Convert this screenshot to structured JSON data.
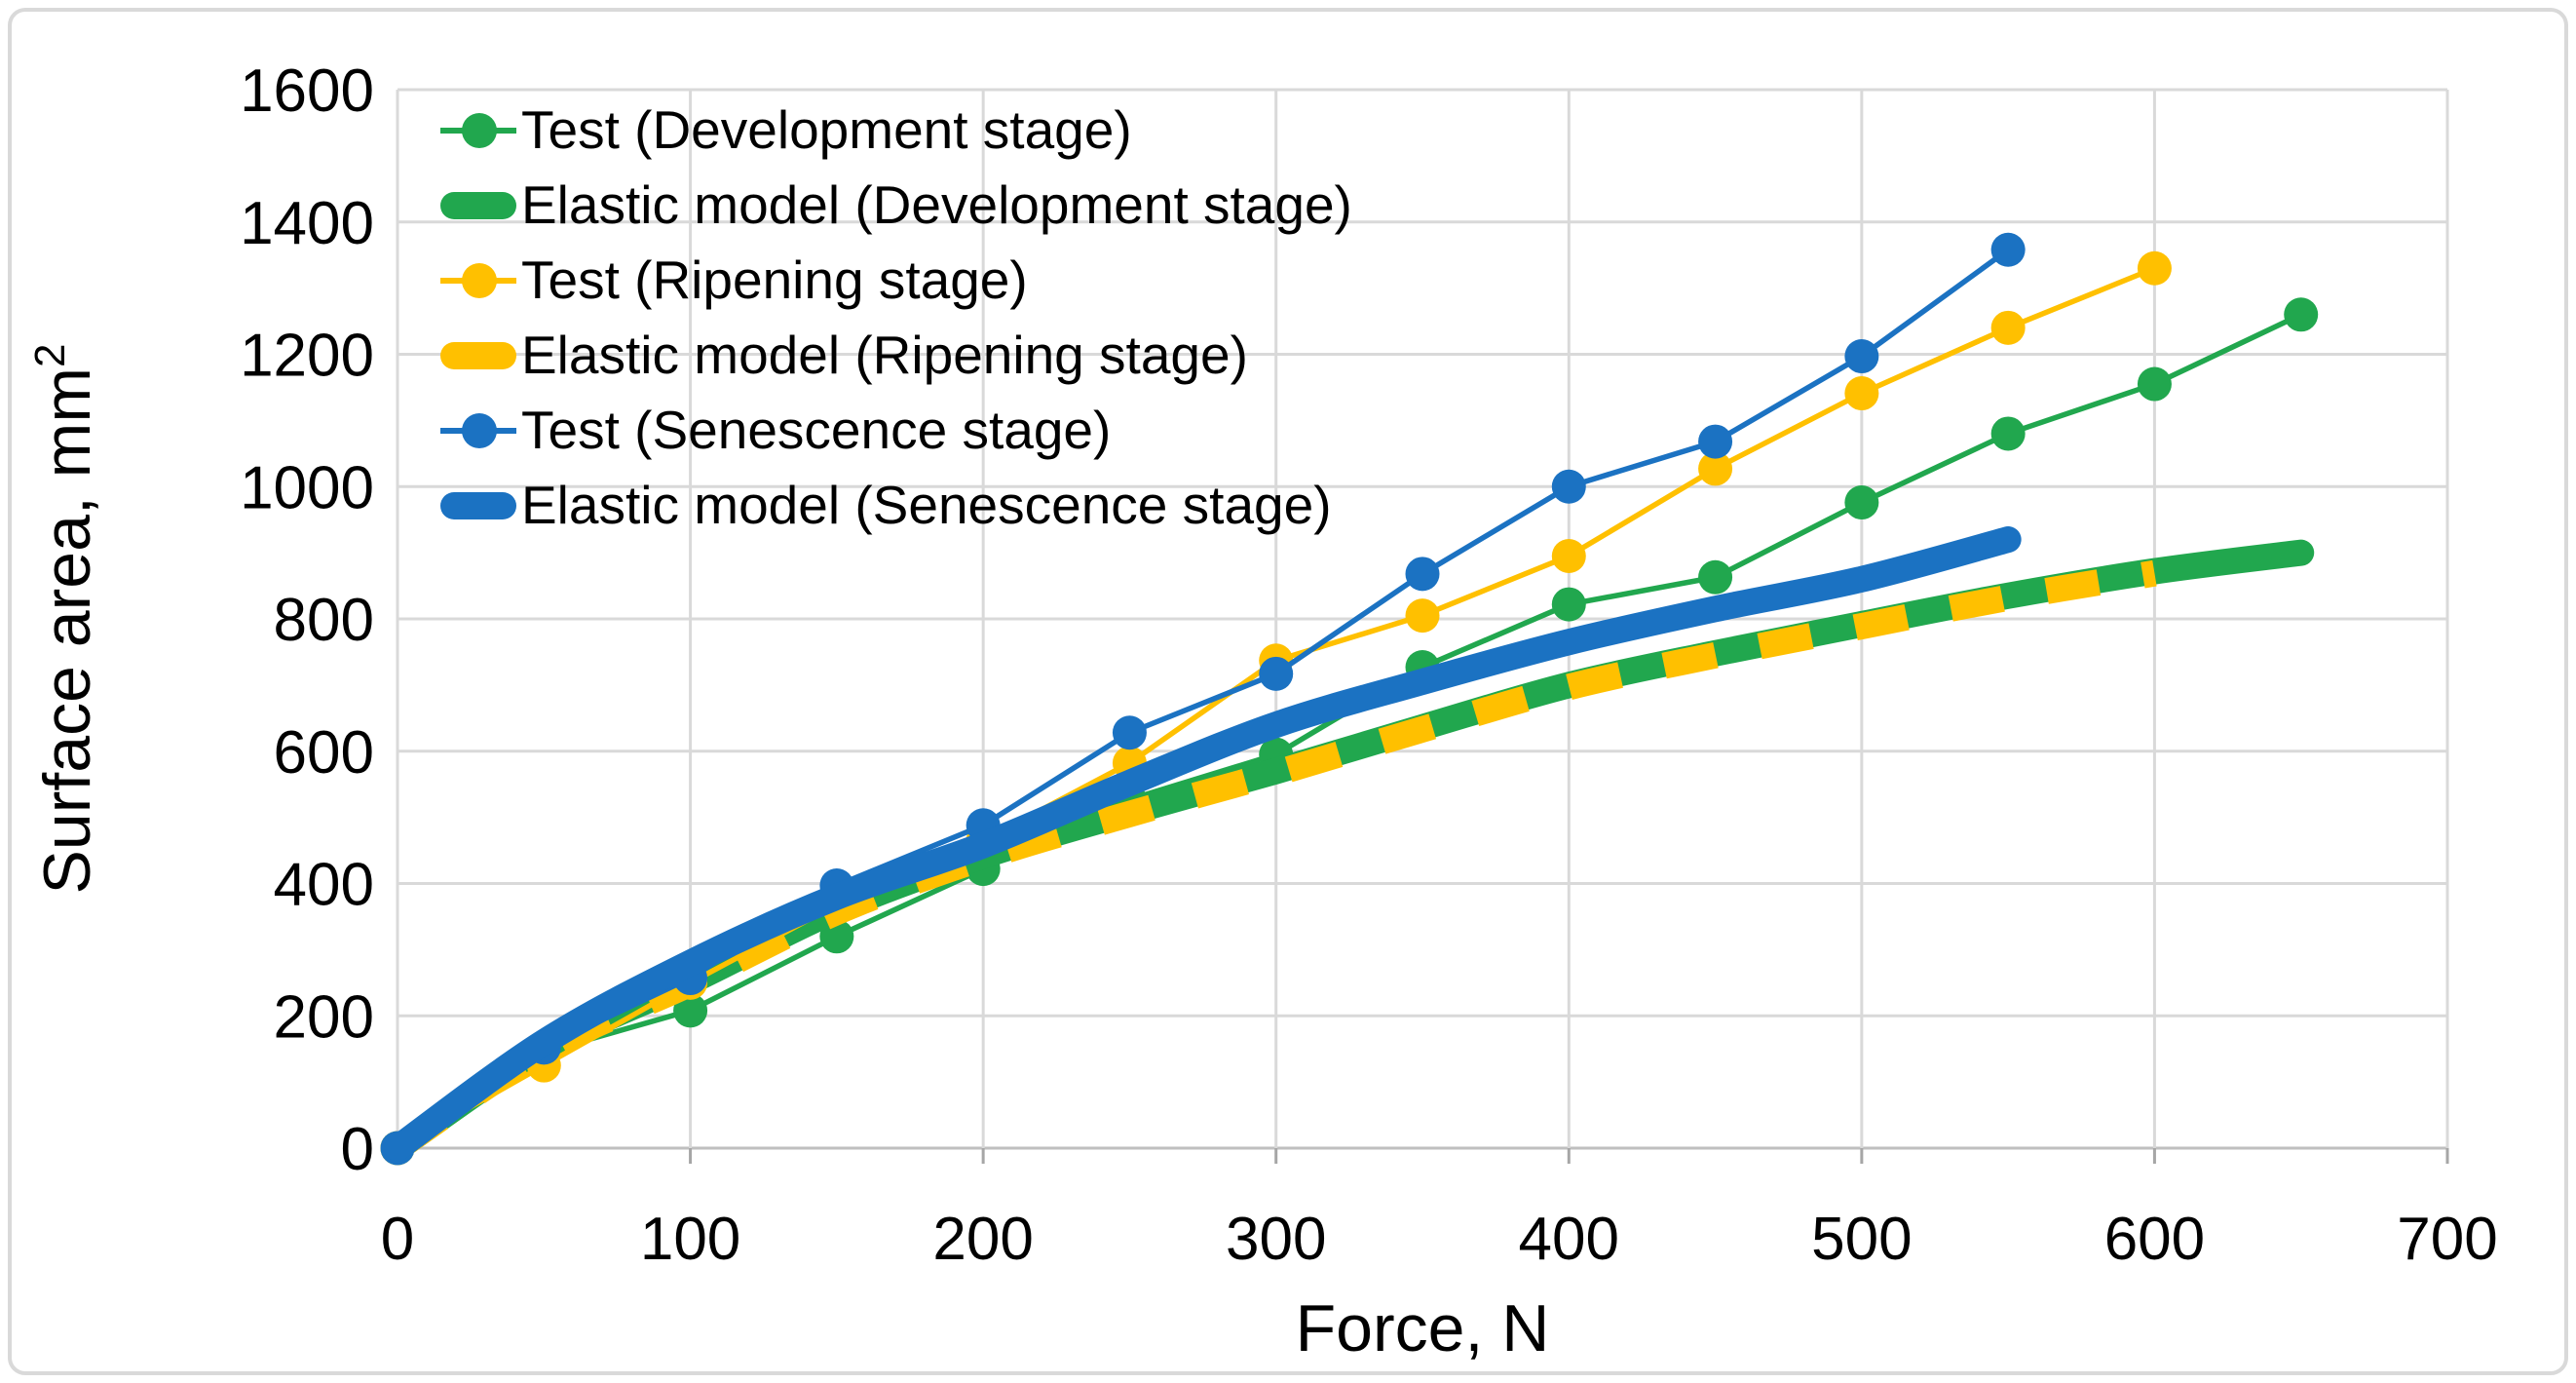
{
  "figure": {
    "background": "#ffffff",
    "border_color": "#d9d9d9"
  },
  "chart_data": {
    "type": "line",
    "title": "",
    "xlabel": "Force, N",
    "ylabel": "Surface area, mm",
    "ylabel_superscript": "2",
    "xlim": [
      0,
      700
    ],
    "ylim": [
      0,
      1600
    ],
    "xticks": [
      0,
      100,
      200,
      300,
      400,
      500,
      600,
      700
    ],
    "yticks": [
      0,
      200,
      400,
      600,
      800,
      1000,
      1200,
      1400,
      1600
    ],
    "grid": true,
    "legend_position": "top-left-inside",
    "colors": {
      "development": "#21a74e",
      "ripening": "#ffc000",
      "senescence": "#1b72c2",
      "grid": "#d9d9d9",
      "axis": "#bfbfbf",
      "tick": "#a6a6a6",
      "text": "#000000"
    },
    "series": [
      {
        "id": "test-development",
        "name": "Test (Development stage)",
        "style": "marker-line",
        "color_key": "development",
        "points": [
          [
            0,
            0
          ],
          [
            50,
            145
          ],
          [
            100,
            208
          ],
          [
            150,
            320
          ],
          [
            200,
            422
          ],
          [
            250,
            527
          ],
          [
            300,
            595
          ],
          [
            350,
            727
          ],
          [
            400,
            822
          ],
          [
            450,
            863
          ],
          [
            500,
            976
          ],
          [
            550,
            1080
          ],
          [
            600,
            1155
          ],
          [
            650,
            1260
          ]
        ]
      },
      {
        "id": "elastic-model-development",
        "name": "Elastic model (Development stage)",
        "style": "thick-line",
        "color_key": "development",
        "points": [
          [
            0,
            0
          ],
          [
            50,
            150
          ],
          [
            100,
            252
          ],
          [
            150,
            360
          ],
          [
            200,
            442
          ],
          [
            250,
            508
          ],
          [
            300,
            570
          ],
          [
            350,
            636
          ],
          [
            400,
            700
          ],
          [
            450,
            748
          ],
          [
            500,
            792
          ],
          [
            550,
            835
          ],
          [
            600,
            872
          ],
          [
            650,
            900
          ]
        ]
      },
      {
        "id": "test-ripening",
        "name": "Test (Ripening stage)",
        "style": "marker-line",
        "color_key": "ripening",
        "points": [
          [
            0,
            0
          ],
          [
            50,
            125
          ],
          [
            100,
            250
          ],
          [
            150,
            368
          ],
          [
            200,
            465
          ],
          [
            250,
            582
          ],
          [
            300,
            737
          ],
          [
            350,
            805
          ],
          [
            400,
            895
          ],
          [
            450,
            1027
          ],
          [
            500,
            1141
          ],
          [
            550,
            1240
          ],
          [
            600,
            1330
          ]
        ]
      },
      {
        "id": "elastic-model-ripening",
        "name": "Elastic model (Ripening stage)",
        "style": "thick-dashed-line",
        "color_key": "ripening",
        "points": [
          [
            0,
            0
          ],
          [
            50,
            148
          ],
          [
            100,
            249
          ],
          [
            150,
            357
          ],
          [
            200,
            439
          ],
          [
            250,
            505
          ],
          [
            300,
            567
          ],
          [
            350,
            633
          ],
          [
            400,
            697
          ],
          [
            450,
            745
          ],
          [
            500,
            789
          ],
          [
            550,
            832
          ],
          [
            600,
            869
          ]
        ]
      },
      {
        "id": "test-senescence",
        "name": "Test (Senescence stage)",
        "style": "marker-line",
        "color_key": "senescence",
        "points": [
          [
            0,
            0
          ],
          [
            50,
            152
          ],
          [
            100,
            257
          ],
          [
            150,
            397
          ],
          [
            200,
            488
          ],
          [
            250,
            628
          ],
          [
            300,
            717
          ],
          [
            350,
            868
          ],
          [
            400,
            1000
          ],
          [
            450,
            1068
          ],
          [
            500,
            1197
          ],
          [
            550,
            1358
          ]
        ]
      },
      {
        "id": "elastic-model-senescence",
        "name": "Elastic model (Senescence stage)",
        "style": "thick-line",
        "color_key": "senescence",
        "points": [
          [
            0,
            0
          ],
          [
            50,
            160
          ],
          [
            100,
            280
          ],
          [
            150,
            380
          ],
          [
            200,
            458
          ],
          [
            250,
            552
          ],
          [
            300,
            640
          ],
          [
            350,
            705
          ],
          [
            400,
            765
          ],
          [
            450,
            815
          ],
          [
            500,
            860
          ],
          [
            550,
            920
          ]
        ]
      }
    ]
  }
}
